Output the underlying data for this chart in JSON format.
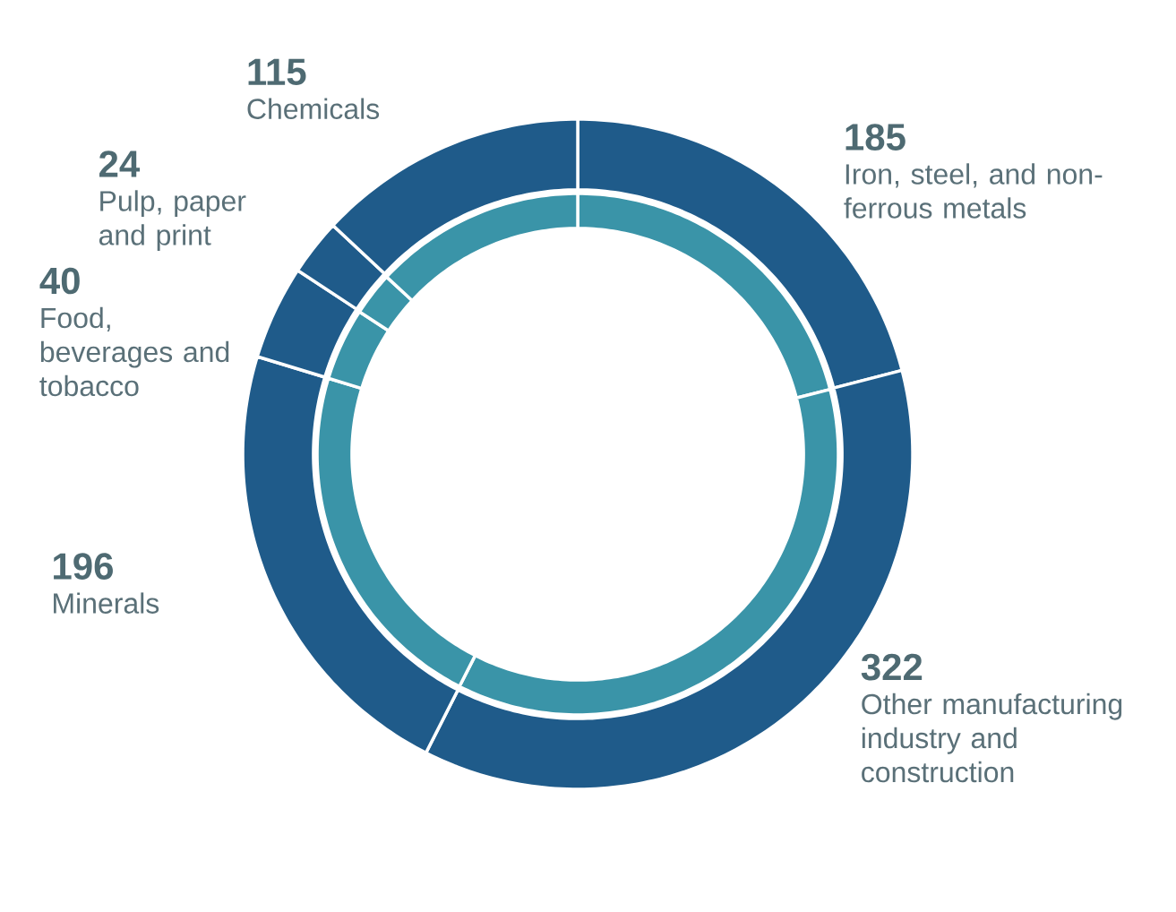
{
  "chart_data": {
    "type": "donut",
    "categories": [
      "Iron, steel, and non-ferrous metals",
      "Other manufacturing industry and construction",
      "Minerals",
      "Food, beverages and tobacco",
      "Pulp, paper and print",
      "Chemicals"
    ],
    "series": [
      {
        "color": "#1f5b8a",
        "values": [
          185,
          322,
          196,
          40,
          24,
          115
        ],
        "value_labels": [
          "185",
          "322",
          "196",
          "40",
          "24",
          "115"
        ]
      },
      {
        "color": "#3a94a8",
        "values": [
          21.0,
          36.5,
          22.2,
          4.5,
          2.7,
          13.1
        ]
      }
    ]
  }
}
